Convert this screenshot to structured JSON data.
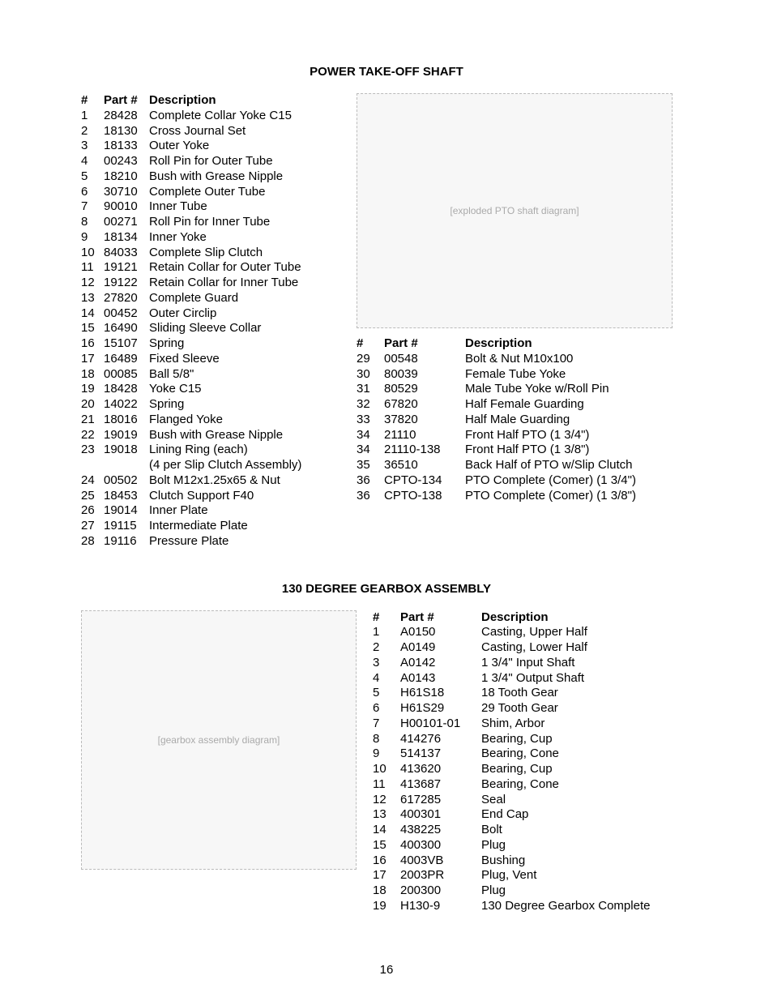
{
  "page_number": "16",
  "section1": {
    "title": "POWER TAKE-OFF SHAFT",
    "diagram_label": "[exploded PTO shaft diagram]",
    "headers": {
      "num": "#",
      "part": "Part #",
      "desc": "Description"
    },
    "left_rows": [
      {
        "num": "1",
        "part": "28428",
        "desc": "Complete Collar Yoke C15"
      },
      {
        "num": "2",
        "part": "18130",
        "desc": "Cross Journal Set"
      },
      {
        "num": "3",
        "part": "18133",
        "desc": "Outer Yoke"
      },
      {
        "num": "4",
        "part": "00243",
        "desc": "Roll Pin for Outer Tube"
      },
      {
        "num": "5",
        "part": "18210",
        "desc": "Bush with Grease Nipple"
      },
      {
        "num": "6",
        "part": "30710",
        "desc": "Complete Outer Tube"
      },
      {
        "num": "7",
        "part": "90010",
        "desc": "Inner Tube"
      },
      {
        "num": "8",
        "part": "00271",
        "desc": "Roll Pin for Inner Tube"
      },
      {
        "num": "9",
        "part": "18134",
        "desc": "Inner Yoke"
      },
      {
        "num": "10",
        "part": "84033",
        "desc": "Complete Slip Clutch"
      },
      {
        "num": "11",
        "part": "19121",
        "desc": "Retain Collar for Outer Tube"
      },
      {
        "num": "12",
        "part": "19122",
        "desc": "Retain Collar for Inner Tube"
      },
      {
        "num": "13",
        "part": "27820",
        "desc": "Complete Guard"
      },
      {
        "num": "14",
        "part": "00452",
        "desc": "Outer Circlip"
      },
      {
        "num": "15",
        "part": "16490",
        "desc": "Sliding Sleeve Collar"
      },
      {
        "num": "16",
        "part": "15107",
        "desc": "Spring"
      },
      {
        "num": "17",
        "part": "16489",
        "desc": "Fixed Sleeve"
      },
      {
        "num": "18",
        "part": "00085",
        "desc": "Ball 5/8\""
      },
      {
        "num": "19",
        "part": "18428",
        "desc": "Yoke C15"
      },
      {
        "num": "20",
        "part": "14022",
        "desc": "Spring"
      },
      {
        "num": "21",
        "part": "18016",
        "desc": "Flanged Yoke"
      },
      {
        "num": "22",
        "part": "19019",
        "desc": "Bush with Grease Nipple"
      },
      {
        "num": "23",
        "part": "19018",
        "desc": "Lining Ring (each)"
      },
      {
        "num": "",
        "part": "",
        "desc": "(4 per Slip Clutch Assembly)"
      },
      {
        "num": "24",
        "part": "00502",
        "desc": "Bolt M12x1.25x65 & Nut"
      },
      {
        "num": "25",
        "part": "18453",
        "desc": "Clutch Support F40"
      },
      {
        "num": "26",
        "part": "19014",
        "desc": "Inner Plate"
      },
      {
        "num": "27",
        "part": "19115",
        "desc": "Intermediate Plate"
      },
      {
        "num": "28",
        "part": "19116",
        "desc": "Pressure Plate"
      }
    ],
    "right_rows": [
      {
        "num": "29",
        "part": "00548",
        "desc": "Bolt & Nut M10x100"
      },
      {
        "num": "30",
        "part": "80039",
        "desc": "Female Tube Yoke"
      },
      {
        "num": "31",
        "part": "80529",
        "desc": "Male Tube Yoke w/Roll Pin"
      },
      {
        "num": "32",
        "part": "67820",
        "desc": "Half Female Guarding"
      },
      {
        "num": "33",
        "part": "37820",
        "desc": "Half Male Guarding"
      },
      {
        "num": "34",
        "part": "21110",
        "desc": "Front Half PTO (1 3/4\")"
      },
      {
        "num": "34",
        "part": "21110-138",
        "desc": "Front Half PTO (1 3/8\")"
      },
      {
        "num": "35",
        "part": "36510",
        "desc": "Back Half of PTO w/Slip Clutch"
      },
      {
        "num": "36",
        "part": "CPTO-134",
        "desc": "PTO Complete (Comer) (1 3/4\")"
      },
      {
        "num": "36",
        "part": "CPTO-138",
        "desc": "PTO Complete (Comer) (1 3/8\")"
      }
    ]
  },
  "section2": {
    "title": "130 DEGREE GEARBOX ASSEMBLY",
    "diagram_label": "[gearbox assembly diagram]",
    "headers": {
      "num": "#",
      "part": "Part #",
      "desc": "Description"
    },
    "rows": [
      {
        "num": "1",
        "part": "A0150",
        "desc": "Casting, Upper Half"
      },
      {
        "num": "2",
        "part": "A0149",
        "desc": "Casting, Lower Half"
      },
      {
        "num": "3",
        "part": "A0142",
        "desc": "1 3/4\" Input Shaft"
      },
      {
        "num": "4",
        "part": "A0143",
        "desc": "1 3/4\" Output Shaft"
      },
      {
        "num": "5",
        "part": "H61S18",
        "desc": "18 Tooth Gear"
      },
      {
        "num": "6",
        "part": "H61S29",
        "desc": "29 Tooth Gear"
      },
      {
        "num": "7",
        "part": "H00101-01",
        "desc": "Shim, Arbor"
      },
      {
        "num": "8",
        "part": "414276",
        "desc": "Bearing, Cup"
      },
      {
        "num": "9",
        "part": "514137",
        "desc": "Bearing, Cone"
      },
      {
        "num": "10",
        "part": "413620",
        "desc": "Bearing, Cup"
      },
      {
        "num": "11",
        "part": "413687",
        "desc": "Bearing, Cone"
      },
      {
        "num": "12",
        "part": "617285",
        "desc": "Seal"
      },
      {
        "num": "13",
        "part": "400301",
        "desc": "End Cap"
      },
      {
        "num": "14",
        "part": "438225",
        "desc": "Bolt"
      },
      {
        "num": "15",
        "part": "400300",
        "desc": "Plug"
      },
      {
        "num": "16",
        "part": "4003VB",
        "desc": "Bushing"
      },
      {
        "num": "17",
        "part": "2003PR",
        "desc": "Plug, Vent"
      },
      {
        "num": "18",
        "part": "200300",
        "desc": "Plug"
      },
      {
        "num": "19",
        "part": "H130-9",
        "desc": "130 Degree Gearbox Complete"
      }
    ]
  }
}
